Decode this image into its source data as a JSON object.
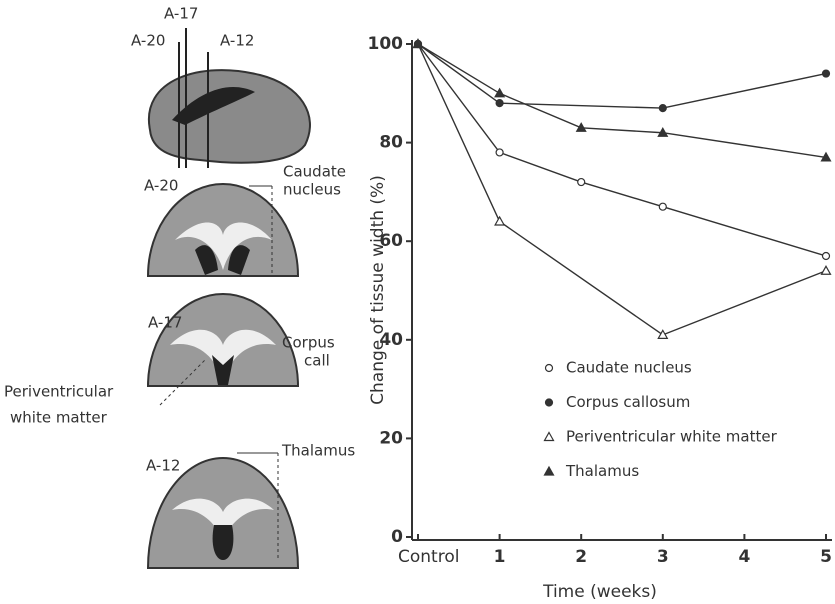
{
  "figure_labels": {
    "sagittal": [
      "A-17",
      "A-20",
      "A-12"
    ],
    "section_a20": "A-20",
    "caudate": [
      "Caudate",
      "nucleus"
    ],
    "section_a17": "A-17",
    "corpus": [
      "Corpus",
      "call"
    ],
    "periventricular": [
      "Periventricular",
      "white matter"
    ],
    "section_a12": "A-12",
    "thalamus": "Thalamus"
  },
  "chart_data": {
    "type": "line",
    "x_label": "Time (weeks)",
    "y_label": "Change of tissue width (%)",
    "xlim": [
      0,
      5
    ],
    "xticks": [
      {
        "value": 0,
        "label": "Control"
      },
      1,
      2,
      3,
      4,
      5
    ],
    "ylim": [
      0,
      100
    ],
    "yticks": [
      0,
      20,
      40,
      60,
      80,
      100
    ],
    "series": [
      {
        "name": "Caudate nucleus",
        "color": "#333333",
        "marker": "circle",
        "filled": false,
        "x": [
          0,
          1,
          2,
          3,
          5
        ],
        "values": [
          100,
          78,
          72,
          67,
          57
        ]
      },
      {
        "name": "Corpus callosum",
        "color": "#333333",
        "marker": "circle",
        "filled": true,
        "x": [
          0,
          1,
          3,
          5
        ],
        "values": [
          100,
          88,
          87,
          94
        ]
      },
      {
        "name": "Periventricular white matter",
        "color": "#333333",
        "marker": "triangle",
        "filled": false,
        "x": [
          0,
          1,
          3,
          5
        ],
        "values": [
          100,
          64,
          41,
          54
        ]
      },
      {
        "name": "Thalamus",
        "color": "#333333",
        "marker": "triangle",
        "filled": true,
        "x": [
          0,
          1,
          2,
          3,
          5
        ],
        "values": [
          100,
          90,
          83,
          82,
          77
        ]
      }
    ]
  }
}
